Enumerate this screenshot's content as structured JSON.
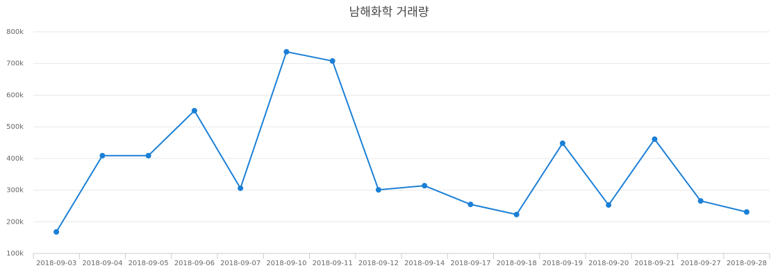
{
  "chart_data": {
    "type": "line",
    "title": "남해화학 거래량",
    "categories": [
      "2018-09-03",
      "2018-09-04",
      "2018-09-05",
      "2018-09-06",
      "2018-09-07",
      "2018-09-10",
      "2018-09-11",
      "2018-09-12",
      "2018-09-14",
      "2018-09-17",
      "2018-09-18",
      "2018-09-19",
      "2018-09-20",
      "2018-09-21",
      "2018-09-27",
      "2018-09-28"
    ],
    "series": [
      {
        "name": "거래량",
        "color": "#1a7fd6",
        "values": [
          168000,
          409000,
          409000,
          551000,
          306000,
          737000,
          708000,
          301000,
          314000,
          255000,
          223000,
          448000,
          253000,
          461000,
          266000,
          231000
        ]
      }
    ],
    "ylim": [
      100000,
      800000
    ],
    "yticks": [
      {
        "value": 100000,
        "label": "100k"
      },
      {
        "value": 200000,
        "label": "200k"
      },
      {
        "value": 300000,
        "label": "300k"
      },
      {
        "value": 400000,
        "label": "400k"
      },
      {
        "value": 500000,
        "label": "500k"
      },
      {
        "value": 600000,
        "label": "600k"
      },
      {
        "value": 700000,
        "label": "700k"
      },
      {
        "value": 800000,
        "label": "800k"
      }
    ],
    "grid": true
  }
}
